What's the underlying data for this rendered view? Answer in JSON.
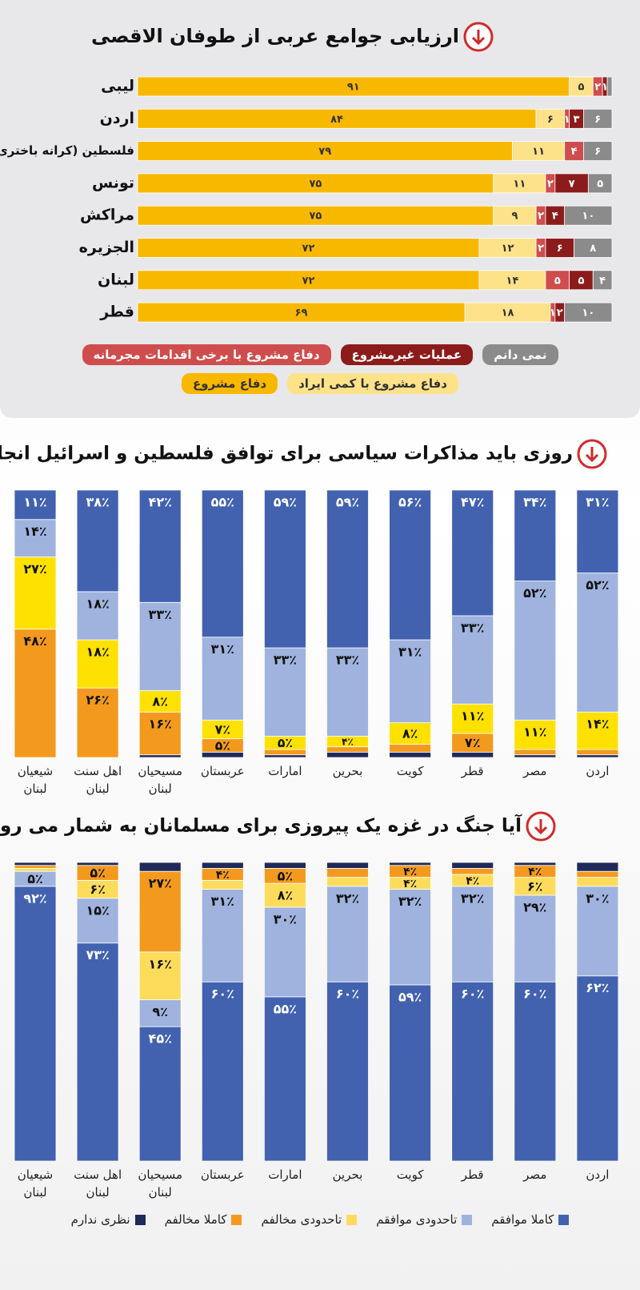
{
  "chart_data": [
    {
      "type": "stacked-hbar",
      "title": "ارزیابی جوامع عربی از طوفان الاقصی",
      "categories": [
        "لیبی",
        "اردن",
        "فلسطین (کرانه باختری)",
        "تونس",
        "مراکش",
        "الجزیره",
        "لبنان",
        "قطر"
      ],
      "xlim": [
        0,
        100
      ],
      "series": [
        {
          "name": "دفاع مشروع",
          "color": "#f9b800",
          "values": [
            91,
            84,
            79,
            75,
            75,
            72,
            72,
            69
          ],
          "value_labels": [
            "۹۱",
            "۸۴",
            "۷۹",
            "۷۵",
            "۷۵",
            "۷۲",
            "۷۲",
            "۶۹"
          ]
        },
        {
          "name": "دفاع مشروع با کمی ایراد",
          "color": "#fde28a",
          "values": [
            5,
            6,
            11,
            11,
            9,
            12,
            14,
            18
          ],
          "value_labels": [
            "۵",
            "۶",
            "۱۱",
            "۱۱",
            "۹",
            "۱۲",
            "۱۴",
            "۱۸"
          ]
        },
        {
          "name": "دفاع مشروع با برخی اقدامات مجرمانه",
          "color": "#cf4d4d",
          "values": [
            2,
            1,
            4,
            2,
            2,
            2,
            5,
            1
          ],
          "value_labels": [
            "۲",
            "۱",
            "۴",
            "۲",
            "۲",
            "۲",
            "۵",
            "۱"
          ]
        },
        {
          "name": "عملیات غیرمشروع",
          "color": "#8c1c1c",
          "values": [
            1,
            3,
            0,
            7,
            4,
            6,
            5,
            2
          ],
          "value_labels": [
            "۱",
            "۳",
            null,
            "۷",
            "۴",
            "۶",
            "۵",
            "۲"
          ]
        },
        {
          "name": "نمی دانم",
          "color": "#8b8b8b",
          "values": [
            1,
            6,
            6,
            5,
            10,
            8,
            4,
            10
          ],
          "value_labels": [
            null,
            "۶",
            "۶",
            "۵",
            "۱۰",
            "۸",
            "۴",
            "۱۰"
          ]
        }
      ]
    },
    {
      "type": "stacked-vbar",
      "title": "روزی باید مذاکرات سیاسی برای توافق فلسطین و اسرائیل انجام شود",
      "categories": [
        "شیعیان لبنان",
        "اهل سنت لبنان",
        "مسیحیان لبنان",
        "عربستان",
        "امارات",
        "بحرین",
        "کویت",
        "قطر",
        "مصر",
        "اردن"
      ],
      "ylim": [
        0,
        100
      ],
      "series": [
        {
          "color": "#1f2a5a",
          "values": [
            0,
            0,
            1,
            2,
            1,
            2,
            2,
            2,
            1,
            1
          ]
        },
        {
          "color": "#f39a1e",
          "values": [
            48,
            26,
            16,
            5,
            2,
            2,
            3,
            7,
            2,
            2
          ],
          "value_labels": [
            "۴۸٪",
            "۲۶٪",
            "۱۶٪",
            "۵٪",
            null,
            null,
            null,
            "۷٪",
            null,
            null
          ]
        },
        {
          "color": "#ffe100",
          "values": [
            27,
            18,
            8,
            7,
            5,
            4,
            8,
            11,
            11,
            14
          ],
          "value_labels": [
            "۲۷٪",
            "۱۸٪",
            "۸٪",
            "۷٪",
            "۵٪",
            "۴٪",
            "۸٪",
            "۱۱٪",
            "۱۱٪",
            "۱۴٪"
          ]
        },
        {
          "color": "#9fb3de",
          "values": [
            14,
            18,
            33,
            31,
            33,
            33,
            31,
            33,
            52,
            52
          ],
          "value_labels": [
            "۱۴٪",
            "۱۸٪",
            "۳۳٪",
            "۳۱٪",
            "۳۳٪",
            "۳۳٪",
            "۳۱٪",
            "۳۳٪",
            "۵۲٪",
            "۵۲٪"
          ]
        },
        {
          "color": "#4262b0",
          "values": [
            11,
            38,
            42,
            55,
            59,
            59,
            56,
            47,
            34,
            31
          ],
          "value_labels": [
            "۱۱٪",
            "۳۸٪",
            "۴۲٪",
            "۵۵٪",
            "۵۹٪",
            "۵۹٪",
            "۵۶٪",
            "۴۷٪",
            "۳۴٪",
            "۳۱٪"
          ]
        }
      ]
    },
    {
      "type": "stacked-vbar",
      "title": "آیا جنگ در غزه یک پیروزی برای مسلمانان به شمار می رود",
      "categories": [
        "شیعیان لبنان",
        "اهل سنت لبنان",
        "مسیحیان لبنان",
        "عربستان",
        "امارات",
        "بحرین",
        "کویت",
        "قطر",
        "مصر",
        "اردن"
      ],
      "ylim": [
        0,
        100
      ],
      "series": [
        {
          "name": "کاملا موافقم",
          "color": "#4262b0",
          "values": [
            92,
            73,
            45,
            60,
            55,
            60,
            59,
            60,
            60,
            62
          ],
          "value_labels": [
            "۹۲٪",
            "۷۳٪",
            "۴۵٪",
            "۶۰٪",
            "۵۵٪",
            "۶۰٪",
            "۵۹٪",
            "۶۰٪",
            "۶۰٪",
            "۶۲٪"
          ]
        },
        {
          "name": "تاحدودی موافقم",
          "color": "#9fb3de",
          "values": [
            5,
            15,
            9,
            31,
            30,
            32,
            32,
            32,
            29,
            30
          ],
          "value_labels": [
            "۵٪",
            "۱۵٪",
            "۹٪",
            "۳۱٪",
            "۳۰٪",
            "۳۲٪",
            "۳۲٪",
            "۳۲٪",
            "۲۹٪",
            "۳۰٪"
          ]
        },
        {
          "name": "تاحدودی مخالفم",
          "color": "#fddc5c",
          "values": [
            1,
            6,
            16,
            3,
            8,
            3,
            4,
            4,
            6,
            3
          ],
          "value_labels": [
            null,
            "۶٪",
            "۱۶٪",
            null,
            "۸٪",
            null,
            "۴٪",
            "۴٪",
            "۶٪",
            null
          ]
        },
        {
          "name": "کاملا مخالفم",
          "color": "#f39a1e",
          "values": [
            1,
            5,
            27,
            4,
            5,
            3,
            4,
            2,
            4,
            2
          ],
          "value_labels": [
            null,
            "۵٪",
            "۲۷٪",
            "۴٪",
            "۵٪",
            null,
            "۴٪",
            null,
            "۴٪",
            null
          ]
        },
        {
          "name": "نظری ندارم",
          "color": "#1f2a5a",
          "values": [
            1,
            1,
            3,
            2,
            2,
            2,
            1,
            2,
            1,
            3
          ]
        }
      ]
    }
  ]
}
